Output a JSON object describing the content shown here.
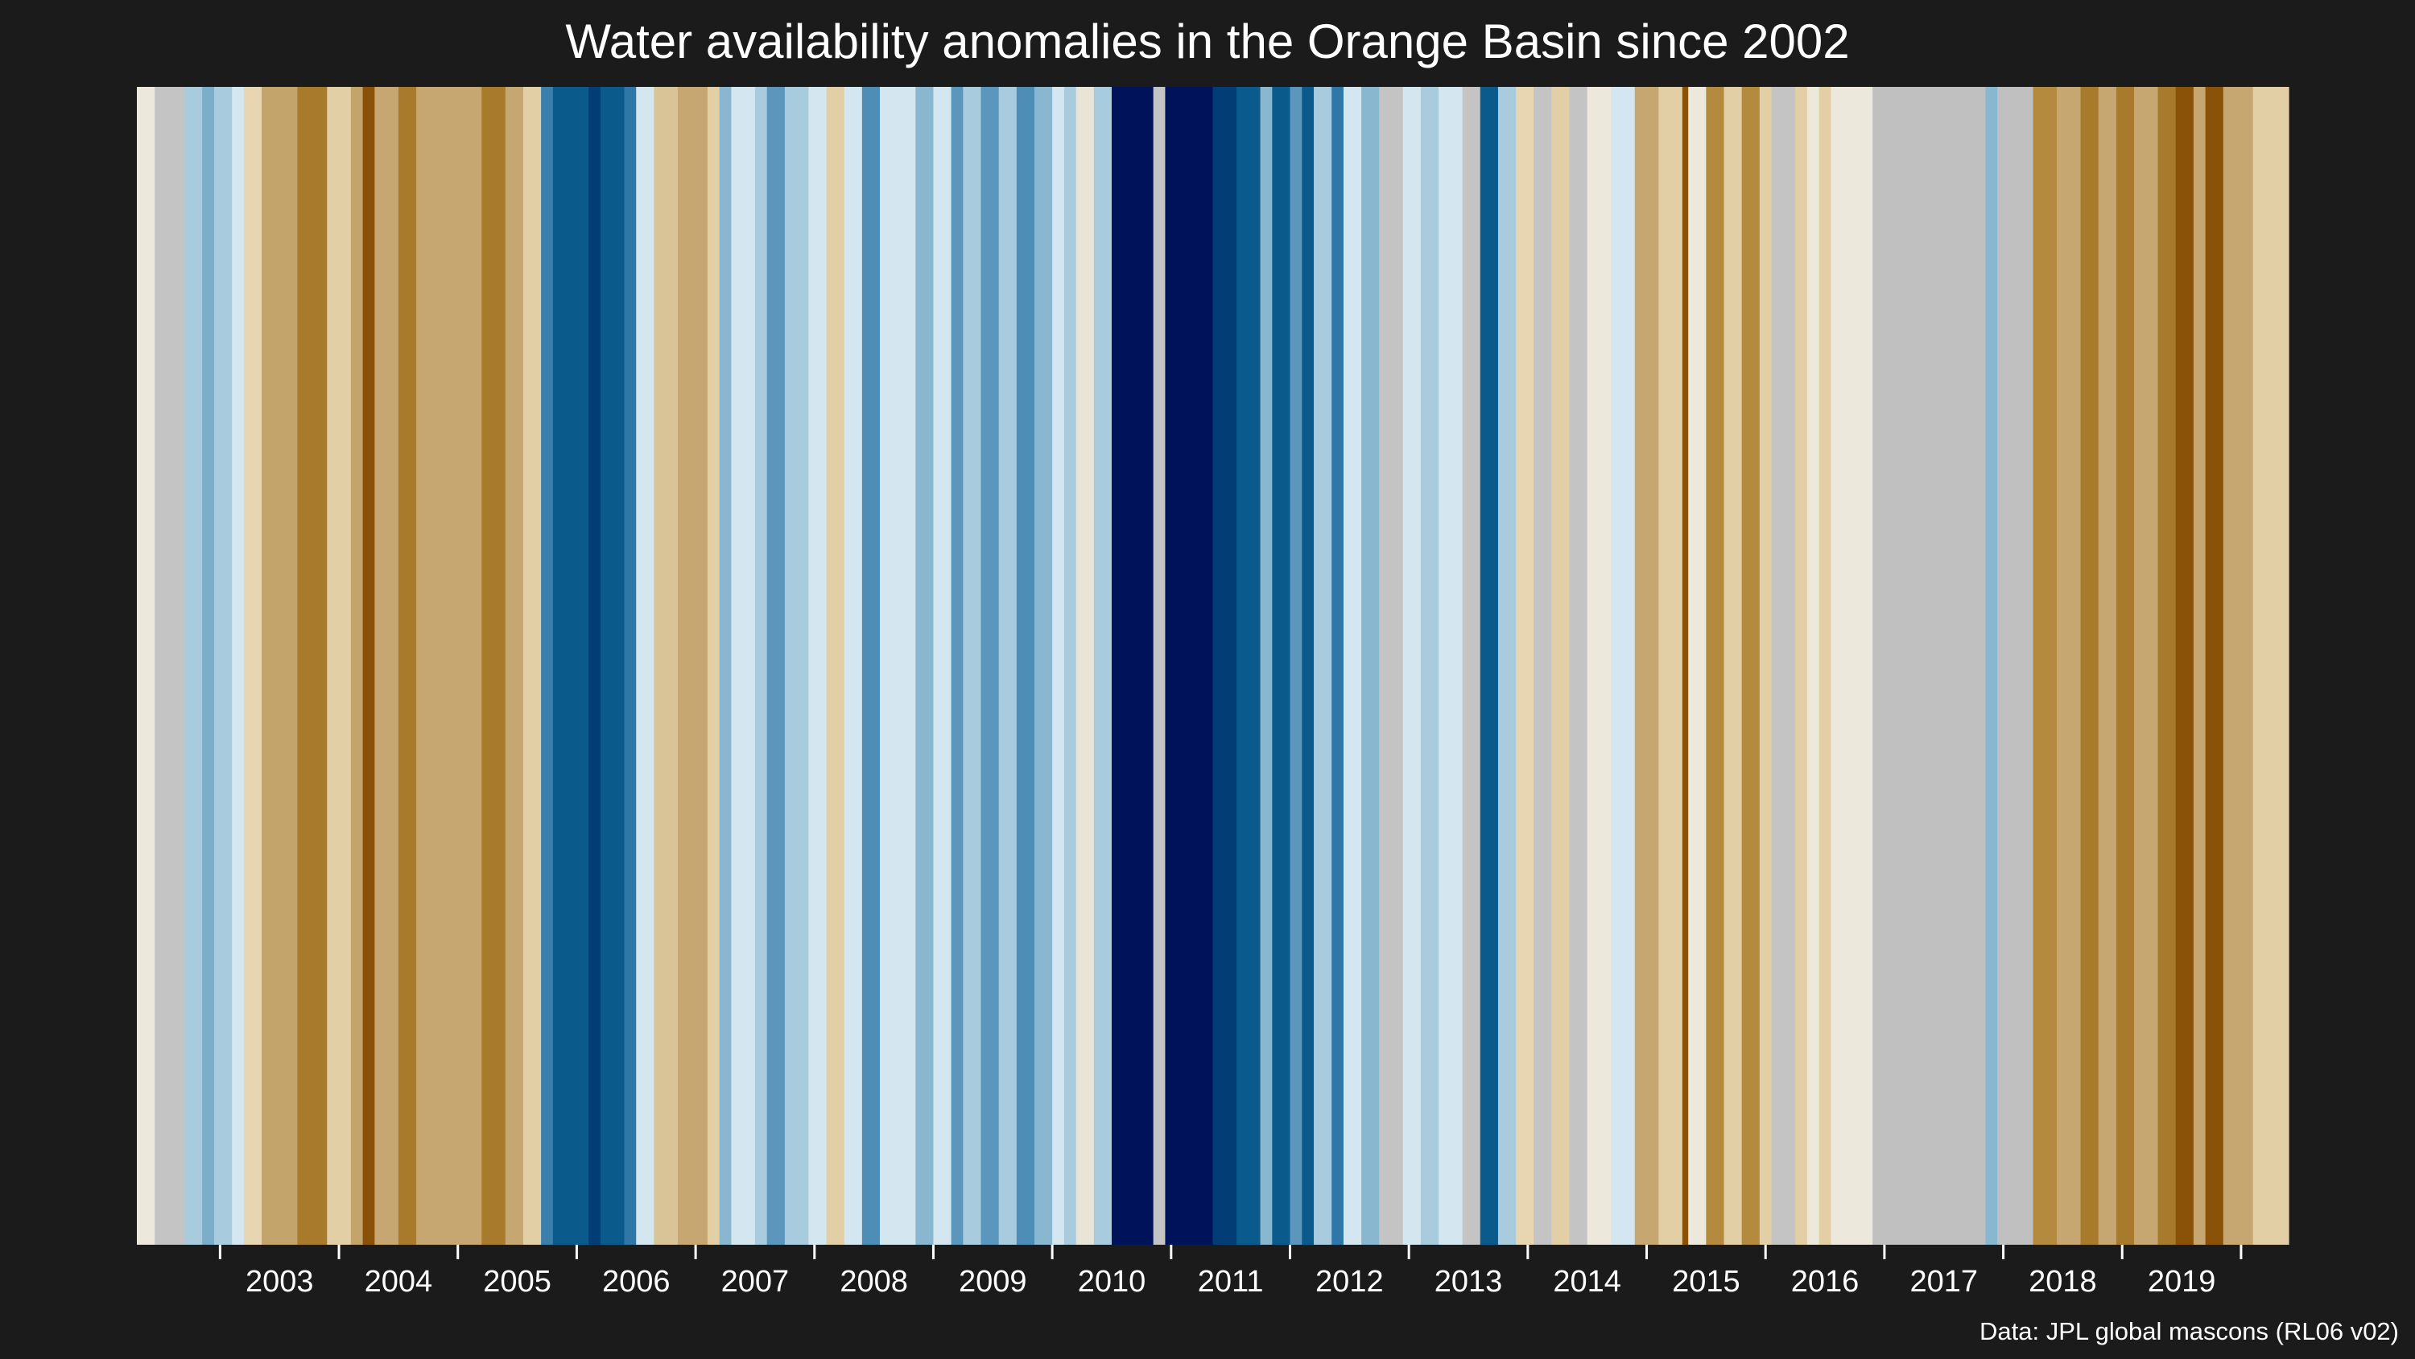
{
  "title": "Water availability anomalies in the Orange Basin since 2002",
  "credit": "Data: JPL global mascons (RL06 v02)",
  "chart_data": {
    "type": "heatmap",
    "title": "Water availability anomalies in the Orange Basin since 2002",
    "xlabel": "",
    "ylabel": "",
    "xlim": [
      2002.3,
      2020.4
    ],
    "colors": {
      "background": "#1b1b1b",
      "gap_gray": "#c0c0c0",
      "dry_strong": "#8a5208",
      "wet_strong": "#00125a"
    },
    "ticks": [
      {
        "label": "2003",
        "value": 2003
      },
      {
        "label": "2004",
        "value": 2004
      },
      {
        "label": "2005",
        "value": 2005
      },
      {
        "label": "2006",
        "value": 2006
      },
      {
        "label": "2007",
        "value": 2007
      },
      {
        "label": "2008",
        "value": 2008
      },
      {
        "label": "2009",
        "value": 2009
      },
      {
        "label": "2010",
        "value": 2010
      },
      {
        "label": "2011",
        "value": 2011
      },
      {
        "label": "2012",
        "value": 2012
      },
      {
        "label": "2013",
        "value": 2013
      },
      {
        "label": "2014",
        "value": 2014
      },
      {
        "label": "2015",
        "value": 2015
      },
      {
        "label": "2016",
        "value": 2016
      },
      {
        "label": "2017",
        "value": 2017
      },
      {
        "label": "2018",
        "value": 2018
      },
      {
        "label": "2019",
        "value": 2019
      }
    ],
    "tick_marks": [
      2003.0,
      2004.0,
      2005.0,
      2006.0,
      2007.0,
      2008.0,
      2009.0,
      2010.0,
      2011.0,
      2012.0,
      2013.0,
      2014.0,
      2015.0,
      2016.0,
      2017.0,
      2018.0,
      2019.0,
      2020.0
    ],
    "stripes": [
      {
        "start": 2002.3,
        "end": 2002.45,
        "color": "#ece8dc"
      },
      {
        "start": 2002.45,
        "end": 2002.7,
        "color": "#c4c4c4"
      },
      {
        "start": 2002.7,
        "end": 2002.85,
        "color": "#a8cbde"
      },
      {
        "start": 2002.85,
        "end": 2002.95,
        "color": "#7aaec9"
      },
      {
        "start": 2002.95,
        "end": 2003.1,
        "color": "#a8cbde"
      },
      {
        "start": 2003.1,
        "end": 2003.2,
        "color": "#d4e6ef"
      },
      {
        "start": 2003.2,
        "end": 2003.35,
        "color": "#e8d6b2"
      },
      {
        "start": 2003.35,
        "end": 2003.65,
        "color": "#c3a46a"
      },
      {
        "start": 2003.65,
        "end": 2003.9,
        "color": "#a87a2b"
      },
      {
        "start": 2003.9,
        "end": 2004.1,
        "color": "#e3cfa6"
      },
      {
        "start": 2004.1,
        "end": 2004.2,
        "color": "#c3a46a"
      },
      {
        "start": 2004.2,
        "end": 2004.3,
        "color": "#8a5208"
      },
      {
        "start": 2004.3,
        "end": 2004.5,
        "color": "#c6a671"
      },
      {
        "start": 2004.5,
        "end": 2004.65,
        "color": "#a87a2b"
      },
      {
        "start": 2004.65,
        "end": 2005.2,
        "color": "#c6a671"
      },
      {
        "start": 2005.2,
        "end": 2005.4,
        "color": "#a87a2b"
      },
      {
        "start": 2005.4,
        "end": 2005.55,
        "color": "#c6a671"
      },
      {
        "start": 2005.55,
        "end": 2005.7,
        "color": "#e3cfa6"
      },
      {
        "start": 2005.7,
        "end": 2005.8,
        "color": "#3b7fad"
      },
      {
        "start": 2005.8,
        "end": 2006.1,
        "color": "#0a5a8c"
      },
      {
        "start": 2006.1,
        "end": 2006.2,
        "color": "#033d75"
      },
      {
        "start": 2006.2,
        "end": 2006.4,
        "color": "#0a5a8c"
      },
      {
        "start": 2006.4,
        "end": 2006.5,
        "color": "#2f77a6"
      },
      {
        "start": 2006.5,
        "end": 2006.65,
        "color": "#d4e6ef"
      },
      {
        "start": 2006.65,
        "end": 2006.85,
        "color": "#d9c497"
      },
      {
        "start": 2006.85,
        "end": 2007.1,
        "color": "#c6a671"
      },
      {
        "start": 2007.1,
        "end": 2007.2,
        "color": "#e3cfa6"
      },
      {
        "start": 2007.2,
        "end": 2007.3,
        "color": "#8ab7d0"
      },
      {
        "start": 2007.3,
        "end": 2007.5,
        "color": "#d4e6ef"
      },
      {
        "start": 2007.5,
        "end": 2007.6,
        "color": "#a8cbde"
      },
      {
        "start": 2007.6,
        "end": 2007.75,
        "color": "#5b97bd"
      },
      {
        "start": 2007.75,
        "end": 2007.95,
        "color": "#a8cbde"
      },
      {
        "start": 2007.95,
        "end": 2008.1,
        "color": "#d4e6ef"
      },
      {
        "start": 2008.1,
        "end": 2008.25,
        "color": "#e3cfa6"
      },
      {
        "start": 2008.25,
        "end": 2008.4,
        "color": "#d4e6ef"
      },
      {
        "start": 2008.4,
        "end": 2008.55,
        "color": "#4d8db6"
      },
      {
        "start": 2008.55,
        "end": 2008.85,
        "color": "#d4e6ef"
      },
      {
        "start": 2008.85,
        "end": 2009.0,
        "color": "#8ab7d0"
      },
      {
        "start": 2009.0,
        "end": 2009.15,
        "color": "#d4e6ef"
      },
      {
        "start": 2009.15,
        "end": 2009.25,
        "color": "#5b97bd"
      },
      {
        "start": 2009.25,
        "end": 2009.4,
        "color": "#a8cbde"
      },
      {
        "start": 2009.4,
        "end": 2009.55,
        "color": "#5b97bd"
      },
      {
        "start": 2009.55,
        "end": 2009.7,
        "color": "#a8cbde"
      },
      {
        "start": 2009.7,
        "end": 2009.85,
        "color": "#4d8db6"
      },
      {
        "start": 2009.85,
        "end": 2010.0,
        "color": "#8ab7d0"
      },
      {
        "start": 2010.0,
        "end": 2010.1,
        "color": "#d4e6ef"
      },
      {
        "start": 2010.1,
        "end": 2010.2,
        "color": "#a8cbde"
      },
      {
        "start": 2010.2,
        "end": 2010.35,
        "color": "#e8e4d6"
      },
      {
        "start": 2010.35,
        "end": 2010.5,
        "color": "#a8cbde"
      },
      {
        "start": 2010.5,
        "end": 2010.85,
        "color": "#00125a"
      },
      {
        "start": 2010.85,
        "end": 2010.95,
        "color": "#c4c4c4"
      },
      {
        "start": 2010.95,
        "end": 2011.35,
        "color": "#00125a"
      },
      {
        "start": 2011.35,
        "end": 2011.55,
        "color": "#033d75"
      },
      {
        "start": 2011.55,
        "end": 2011.75,
        "color": "#0a5a8c"
      },
      {
        "start": 2011.75,
        "end": 2011.85,
        "color": "#8ab7d0"
      },
      {
        "start": 2011.85,
        "end": 2012.0,
        "color": "#0a5a8c"
      },
      {
        "start": 2012.0,
        "end": 2012.1,
        "color": "#5b97bd"
      },
      {
        "start": 2012.1,
        "end": 2012.2,
        "color": "#0a5a8c"
      },
      {
        "start": 2012.2,
        "end": 2012.35,
        "color": "#a8cbde"
      },
      {
        "start": 2012.35,
        "end": 2012.45,
        "color": "#2f77a6"
      },
      {
        "start": 2012.45,
        "end": 2012.6,
        "color": "#d4e6ef"
      },
      {
        "start": 2012.6,
        "end": 2012.75,
        "color": "#8ab7d0"
      },
      {
        "start": 2012.75,
        "end": 2012.95,
        "color": "#c4c4c4"
      },
      {
        "start": 2012.95,
        "end": 2013.1,
        "color": "#d4e6ef"
      },
      {
        "start": 2013.1,
        "end": 2013.25,
        "color": "#a8cbde"
      },
      {
        "start": 2013.25,
        "end": 2013.45,
        "color": "#d4e6ef"
      },
      {
        "start": 2013.45,
        "end": 2013.6,
        "color": "#c4c4c4"
      },
      {
        "start": 2013.6,
        "end": 2013.75,
        "color": "#0a5a8c"
      },
      {
        "start": 2013.75,
        "end": 2013.9,
        "color": "#a8cbde"
      },
      {
        "start": 2013.9,
        "end": 2014.05,
        "color": "#e8d6b2"
      },
      {
        "start": 2014.05,
        "end": 2014.2,
        "color": "#c4c4c4"
      },
      {
        "start": 2014.2,
        "end": 2014.35,
        "color": "#e3cfa6"
      },
      {
        "start": 2014.35,
        "end": 2014.5,
        "color": "#c4c4c4"
      },
      {
        "start": 2014.5,
        "end": 2014.7,
        "color": "#ece8dc"
      },
      {
        "start": 2014.7,
        "end": 2014.9,
        "color": "#d4e6ef"
      },
      {
        "start": 2014.9,
        "end": 2015.1,
        "color": "#c6a671"
      },
      {
        "start": 2015.1,
        "end": 2015.3,
        "color": "#e3cfa6"
      },
      {
        "start": 2015.3,
        "end": 2015.35,
        "color": "#8a5208"
      },
      {
        "start": 2015.35,
        "end": 2015.5,
        "color": "#ece8dc"
      },
      {
        "start": 2015.5,
        "end": 2015.65,
        "color": "#b48a3f"
      },
      {
        "start": 2015.65,
        "end": 2015.8,
        "color": "#e3cfa6"
      },
      {
        "start": 2015.8,
        "end": 2015.95,
        "color": "#b48a3f"
      },
      {
        "start": 2015.95,
        "end": 2016.05,
        "color": "#e3cfa6"
      },
      {
        "start": 2016.05,
        "end": 2016.25,
        "color": "#c4c4c4"
      },
      {
        "start": 2016.25,
        "end": 2016.35,
        "color": "#e3cfa6"
      },
      {
        "start": 2016.35,
        "end": 2016.45,
        "color": "#ece8dc"
      },
      {
        "start": 2016.45,
        "end": 2016.55,
        "color": "#e3cfa6"
      },
      {
        "start": 2016.55,
        "end": 2016.9,
        "color": "#ece8dc"
      },
      {
        "start": 2016.9,
        "end": 2017.85,
        "color": "#c0c0c0"
      },
      {
        "start": 2017.85,
        "end": 2017.95,
        "color": "#8ab7d0"
      },
      {
        "start": 2017.95,
        "end": 2018.25,
        "color": "#c0c0c0"
      },
      {
        "start": 2018.25,
        "end": 2018.45,
        "color": "#b48a3f"
      },
      {
        "start": 2018.45,
        "end": 2018.65,
        "color": "#c6a671"
      },
      {
        "start": 2018.65,
        "end": 2018.8,
        "color": "#a87a2b"
      },
      {
        "start": 2018.8,
        "end": 2018.95,
        "color": "#c6a671"
      },
      {
        "start": 2018.95,
        "end": 2019.1,
        "color": "#a87a2b"
      },
      {
        "start": 2019.1,
        "end": 2019.3,
        "color": "#c6a671"
      },
      {
        "start": 2019.3,
        "end": 2019.45,
        "color": "#a87a2b"
      },
      {
        "start": 2019.45,
        "end": 2019.6,
        "color": "#8a5208"
      },
      {
        "start": 2019.6,
        "end": 2019.7,
        "color": "#c6a671"
      },
      {
        "start": 2019.7,
        "end": 2019.85,
        "color": "#8a5208"
      },
      {
        "start": 2019.85,
        "end": 2020.1,
        "color": "#c6a671"
      },
      {
        "start": 2020.1,
        "end": 2020.4,
        "color": "#e3cfa6"
      }
    ]
  }
}
